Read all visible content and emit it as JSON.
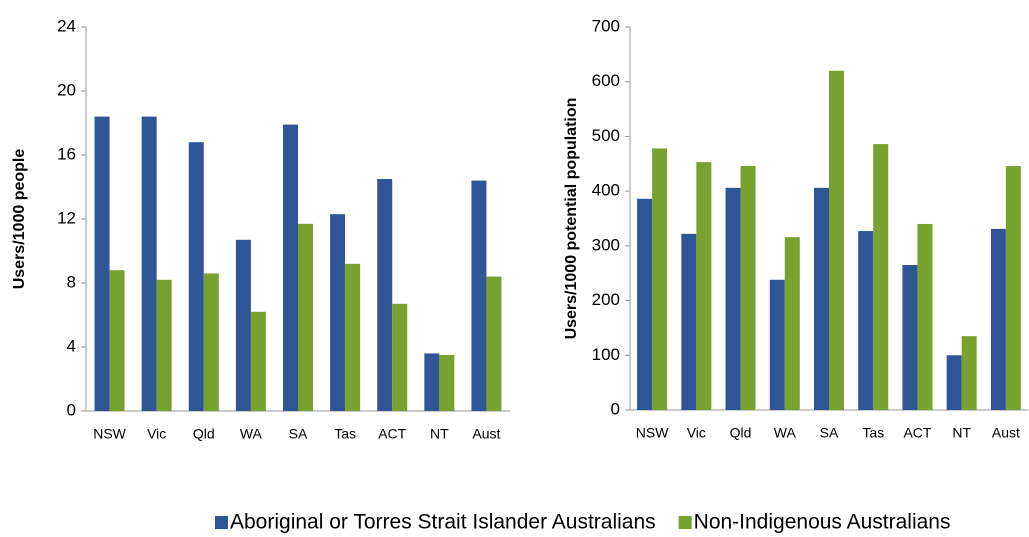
{
  "chart_data": [
    {
      "type": "bar",
      "y_label": "Users/1000 people",
      "categories": [
        "NSW",
        "Vic",
        "Qld",
        "WA",
        "SA",
        "Tas",
        "ACT",
        "NT",
        "Aust"
      ],
      "series": [
        {
          "name": "Aboriginal or Torres Strait Islander Australians",
          "color": "#2f5597",
          "values": [
            18.4,
            18.4,
            16.8,
            10.7,
            17.9,
            12.3,
            14.5,
            3.6,
            14.4
          ]
        },
        {
          "name": "Non-Indigenous Australians",
          "color": "#77a22f",
          "values": [
            8.8,
            8.2,
            8.6,
            6.2,
            11.7,
            9.2,
            6.7,
            3.5,
            8.4
          ]
        }
      ],
      "ylim": [
        0,
        24
      ],
      "yticks": [
        0,
        4,
        8,
        12,
        16,
        20,
        24
      ]
    },
    {
      "type": "bar",
      "y_label": "Users/1000 potential population",
      "categories": [
        "NSW",
        "Vic",
        "Qld",
        "WA",
        "SA",
        "Tas",
        "ACT",
        "NT",
        "Aust"
      ],
      "series": [
        {
          "color": "#2f5597",
          "values": [
            386,
            322,
            406,
            238,
            406,
            327,
            265,
            100,
            331
          ]
        },
        {
          "color": "#77a22f",
          "values": [
            478,
            453,
            446,
            316,
            620,
            486,
            340,
            135,
            446
          ]
        }
      ],
      "ylim": [
        0,
        700
      ],
      "yticks": [
        0,
        100,
        200,
        300,
        400,
        500,
        600,
        700
      ]
    }
  ]
}
